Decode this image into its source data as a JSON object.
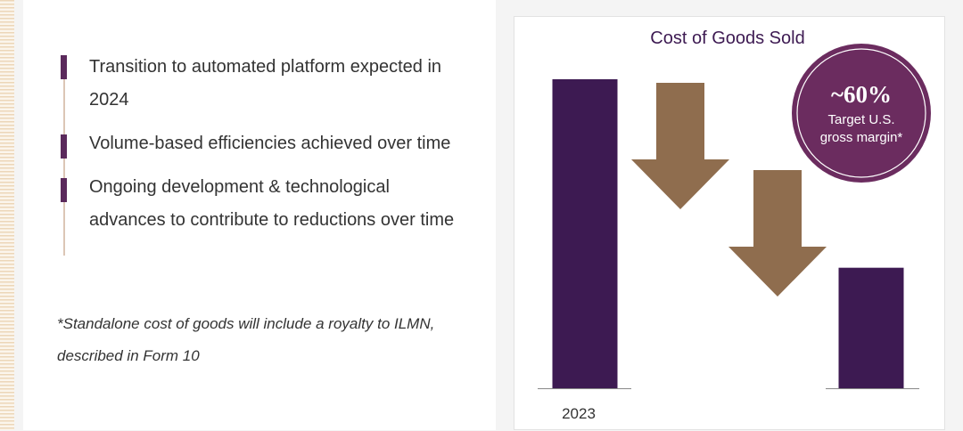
{
  "bullets": [
    "Transition to automated platform expected in 2024",
    "Volume-based efficiencies achieved over time",
    "Ongoing development & technological advances to contribute to reductions over time"
  ],
  "footnote": "*Standalone cost of goods will include a royalty to ILMN, described in Form 10",
  "chart_data": {
    "type": "bar",
    "title": "Cost of Goods Sold",
    "categories": [
      "2023",
      ""
    ],
    "values": [
      100,
      39
    ],
    "ylim": [
      0,
      100
    ],
    "xlabel": "",
    "ylabel": "",
    "grid": false,
    "annotation": {
      "value": "~60%",
      "text": "Target U.S. gross margin*"
    },
    "arrows": 2
  },
  "colors": {
    "bar": "#3d1a52",
    "arrow": "#8f6d4e",
    "circle": "#6b2c5f",
    "title": "#3d1a52",
    "bullet": "#5b2a5c"
  }
}
